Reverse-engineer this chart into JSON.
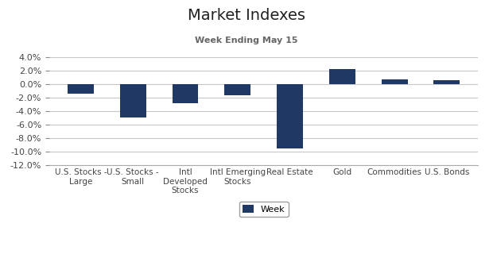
{
  "title": "Market Indexes",
  "subtitle": "Week Ending May 15",
  "categories": [
    "U.S. Stocks -\nLarge",
    "U.S. Stocks -\nSmall",
    "Intl\nDeveloped\nStocks",
    "Intl Emerging\nStocks",
    "Real Estate",
    "Gold",
    "Commodities",
    "U.S. Bonds"
  ],
  "values": [
    -0.015,
    -0.05,
    -0.028,
    -0.017,
    -0.095,
    0.022,
    0.007,
    0.006
  ],
  "bar_color": "#1F3864",
  "ylim": [
    -0.12,
    0.04
  ],
  "yticks": [
    -0.12,
    -0.1,
    -0.08,
    -0.06,
    -0.04,
    -0.02,
    0.0,
    0.02,
    0.04
  ],
  "legend_label": "Week",
  "background_color": "#ffffff",
  "grid_color": "#c8c8c8"
}
